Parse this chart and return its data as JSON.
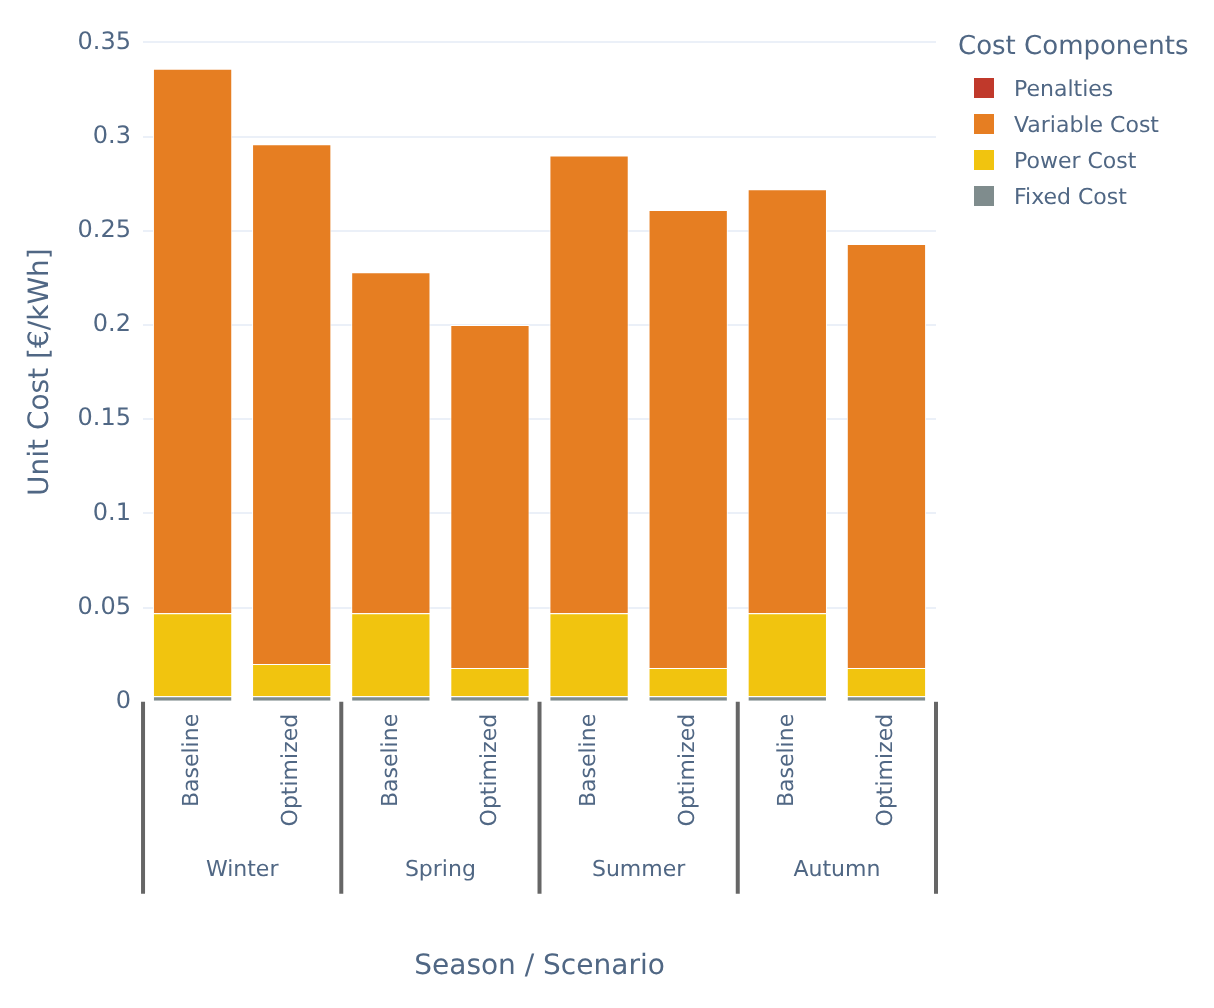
{
  "chart_data": {
    "type": "bar",
    "stacked": true,
    "xlabel": "Season / Scenario",
    "ylabel": "Unit Cost [€/kWh]",
    "legend_title": "Cost Components",
    "legend": "top right",
    "grid": "y",
    "categories": [
      "Baseline",
      "Optimized",
      "Baseline",
      "Optimized",
      "Baseline",
      "Optimized",
      "Baseline",
      "Optimized"
    ],
    "annotations": [
      "Winter",
      "Spring",
      "Summer",
      "Autumn"
    ],
    "ylim": [
      0,
      0.35
    ],
    "yticks": [
      0,
      0.05,
      0.1,
      0.15,
      0.2,
      0.25,
      0.3,
      0.35
    ],
    "series": [
      {
        "name": "Fixed Cost",
        "color": "#7f8c8d",
        "values": [
          0.003,
          0.003,
          0.003,
          0.003,
          0.003,
          0.003,
          0.003,
          0.003
        ]
      },
      {
        "name": "Power Cost",
        "color": "#f1c40f",
        "values": [
          0.044,
          0.017,
          0.044,
          0.015,
          0.044,
          0.015,
          0.044,
          0.015
        ]
      },
      {
        "name": "Variable Cost",
        "color": "#e67e22",
        "values": [
          0.289,
          0.276,
          0.181,
          0.182,
          0.243,
          0.243,
          0.225,
          0.225
        ]
      },
      {
        "name": "Penalties",
        "color": "#c0392b",
        "values": [
          0,
          0,
          0,
          0,
          0,
          0,
          0,
          0
        ]
      }
    ]
  }
}
